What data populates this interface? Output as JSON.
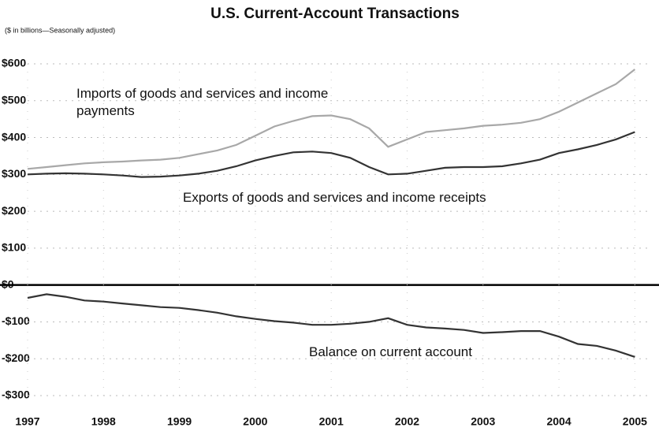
{
  "chart_data": {
    "type": "line",
    "title": "U.S. Current-Account Transactions",
    "subtitle": "($ in billions—Seasonally adjusted)",
    "x": [
      1997,
      1997.25,
      1997.5,
      1997.75,
      1998,
      1998.25,
      1998.5,
      1998.75,
      1999,
      1999.25,
      1999.5,
      1999.75,
      2000,
      2000.25,
      2000.5,
      2000.75,
      2001,
      2001.25,
      2001.5,
      2001.75,
      2002,
      2002.25,
      2002.5,
      2002.75,
      2003,
      2003.25,
      2003.5,
      2003.75,
      2004,
      2004.25,
      2004.5,
      2004.75,
      2005
    ],
    "series": [
      {
        "name": "Imports of goods and services and income payments",
        "color": "#a8a8a8",
        "values": [
          315,
          320,
          325,
          330,
          333,
          335,
          338,
          340,
          345,
          355,
          365,
          380,
          405,
          430,
          445,
          458,
          460,
          450,
          425,
          375,
          395,
          415,
          420,
          425,
          432,
          435,
          440,
          450,
          470,
          495,
          520,
          545,
          585
        ]
      },
      {
        "name": "Exports of goods and services and income receipts",
        "color": "#333333",
        "values": [
          300,
          302,
          303,
          302,
          300,
          297,
          293,
          294,
          297,
          302,
          310,
          322,
          338,
          350,
          360,
          362,
          358,
          345,
          320,
          300,
          302,
          310,
          318,
          320,
          320,
          322,
          330,
          340,
          358,
          368,
          380,
          395,
          415
        ]
      },
      {
        "name": "Balance on current account",
        "color": "#333333",
        "values": [
          -35,
          -25,
          -32,
          -42,
          -45,
          -50,
          -55,
          -60,
          -62,
          -68,
          -75,
          -85,
          -92,
          -98,
          -102,
          -108,
          -108,
          -105,
          -100,
          -90,
          -108,
          -115,
          -118,
          -122,
          -130,
          -128,
          -125,
          -125,
          -140,
          -160,
          -165,
          -178,
          -195
        ]
      }
    ],
    "xlim": [
      1997,
      2005.1
    ],
    "xticks": [
      1997,
      1998,
      1999,
      2000,
      2001,
      2002,
      2003,
      2004,
      2005
    ],
    "ylim": [
      -300,
      600
    ],
    "yticks": [
      {
        "value": 600,
        "label": "$600"
      },
      {
        "value": 500,
        "label": "$500"
      },
      {
        "value": 400,
        "label": "$400"
      },
      {
        "value": 300,
        "label": "$300"
      },
      {
        "value": 200,
        "label": "$200"
      },
      {
        "value": 100,
        "label": "$100"
      },
      {
        "value": 0,
        "label": "$0"
      },
      {
        "value": -100,
        "label": "-$100"
      },
      {
        "value": -200,
        "label": "-$200"
      },
      {
        "value": -300,
        "label": "-$300"
      }
    ],
    "grid": true
  }
}
